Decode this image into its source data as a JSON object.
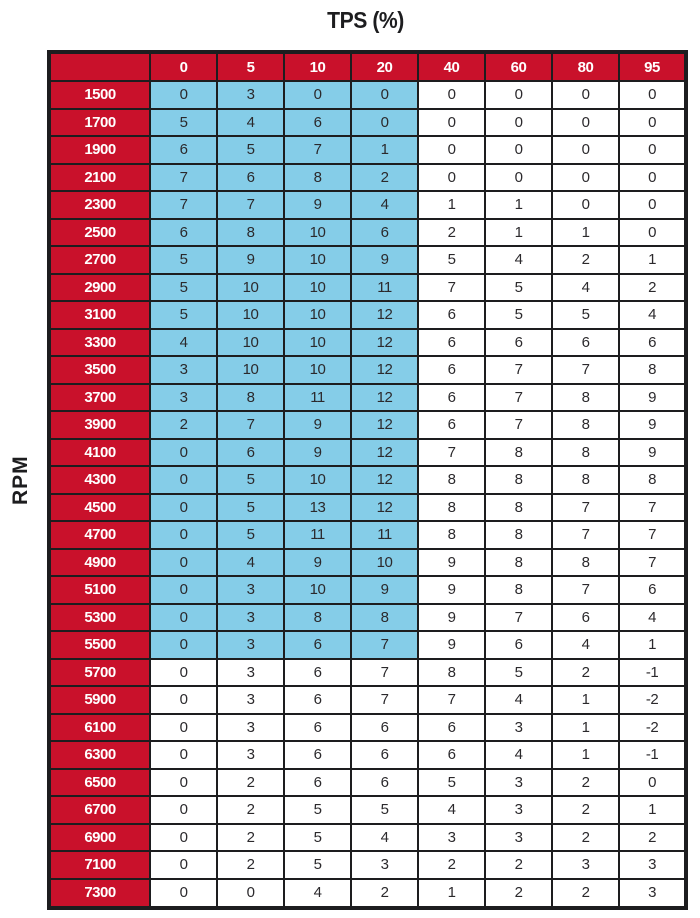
{
  "title": "TPS (%)",
  "y_axis_label": "RPM",
  "colors": {
    "header_red": "#C9112B",
    "highlight_blue": "#85CDE8",
    "border_black": "#1D1D1F",
    "header_text": "#FFFFFF",
    "cell_text": "#2B292C"
  },
  "chart_data": {
    "type": "table",
    "title": "TPS (%)",
    "column_axis_label": "TPS (%)",
    "row_axis_label": "RPM",
    "column_headers": [
      "0",
      "5",
      "10",
      "20",
      "40",
      "60",
      "80",
      "95"
    ],
    "rows": [
      {
        "rpm": "1500",
        "values": [
          0,
          3,
          0,
          0,
          0,
          0,
          0,
          0
        ]
      },
      {
        "rpm": "1700",
        "values": [
          5,
          4,
          6,
          0,
          0,
          0,
          0,
          0
        ]
      },
      {
        "rpm": "1900",
        "values": [
          6,
          5,
          7,
          1,
          0,
          0,
          0,
          0
        ]
      },
      {
        "rpm": "2100",
        "values": [
          7,
          6,
          8,
          2,
          0,
          0,
          0,
          0
        ]
      },
      {
        "rpm": "2300",
        "values": [
          7,
          7,
          9,
          4,
          1,
          1,
          0,
          0
        ]
      },
      {
        "rpm": "2500",
        "values": [
          6,
          8,
          10,
          6,
          2,
          1,
          1,
          0
        ]
      },
      {
        "rpm": "2700",
        "values": [
          5,
          9,
          10,
          9,
          5,
          4,
          2,
          1
        ]
      },
      {
        "rpm": "2900",
        "values": [
          5,
          10,
          10,
          11,
          7,
          5,
          4,
          2
        ]
      },
      {
        "rpm": "3100",
        "values": [
          5,
          10,
          10,
          12,
          6,
          5,
          5,
          4
        ]
      },
      {
        "rpm": "3300",
        "values": [
          4,
          10,
          10,
          12,
          6,
          6,
          6,
          6
        ]
      },
      {
        "rpm": "3500",
        "values": [
          3,
          10,
          10,
          12,
          6,
          7,
          7,
          8
        ]
      },
      {
        "rpm": "3700",
        "values": [
          3,
          8,
          11,
          12,
          6,
          7,
          8,
          9
        ]
      },
      {
        "rpm": "3900",
        "values": [
          2,
          7,
          9,
          12,
          6,
          7,
          8,
          9
        ]
      },
      {
        "rpm": "4100",
        "values": [
          0,
          6,
          9,
          12,
          7,
          8,
          8,
          9
        ]
      },
      {
        "rpm": "4300",
        "values": [
          0,
          5,
          10,
          12,
          8,
          8,
          8,
          8
        ]
      },
      {
        "rpm": "4500",
        "values": [
          0,
          5,
          13,
          12,
          8,
          8,
          7,
          7
        ]
      },
      {
        "rpm": "4700",
        "values": [
          0,
          5,
          11,
          11,
          8,
          8,
          7,
          7
        ]
      },
      {
        "rpm": "4900",
        "values": [
          0,
          4,
          9,
          10,
          9,
          8,
          8,
          7
        ]
      },
      {
        "rpm": "5100",
        "values": [
          0,
          3,
          10,
          9,
          9,
          8,
          7,
          6
        ]
      },
      {
        "rpm": "5300",
        "values": [
          0,
          3,
          8,
          8,
          9,
          7,
          6,
          4
        ]
      },
      {
        "rpm": "5500",
        "values": [
          0,
          3,
          6,
          7,
          9,
          6,
          4,
          1
        ]
      },
      {
        "rpm": "5700",
        "values": [
          0,
          3,
          6,
          7,
          8,
          5,
          2,
          -1
        ]
      },
      {
        "rpm": "5900",
        "values": [
          0,
          3,
          6,
          7,
          7,
          4,
          1,
          -2
        ]
      },
      {
        "rpm": "6100",
        "values": [
          0,
          3,
          6,
          6,
          6,
          3,
          1,
          -2
        ]
      },
      {
        "rpm": "6300",
        "values": [
          0,
          3,
          6,
          6,
          6,
          4,
          1,
          -1
        ]
      },
      {
        "rpm": "6500",
        "values": [
          0,
          2,
          6,
          6,
          5,
          3,
          2,
          0
        ]
      },
      {
        "rpm": "6700",
        "values": [
          0,
          2,
          5,
          5,
          4,
          3,
          2,
          1
        ]
      },
      {
        "rpm": "6900",
        "values": [
          0,
          2,
          5,
          4,
          3,
          3,
          2,
          2
        ]
      },
      {
        "rpm": "7100",
        "values": [
          0,
          2,
          5,
          3,
          2,
          2,
          3,
          3
        ]
      },
      {
        "rpm": "7300",
        "values": [
          0,
          0,
          4,
          2,
          1,
          2,
          2,
          3
        ]
      }
    ],
    "highlight": {
      "columns": [
        "0",
        "5",
        "10",
        "20"
      ],
      "rpm_from": "1500",
      "rpm_to": "5500"
    }
  }
}
